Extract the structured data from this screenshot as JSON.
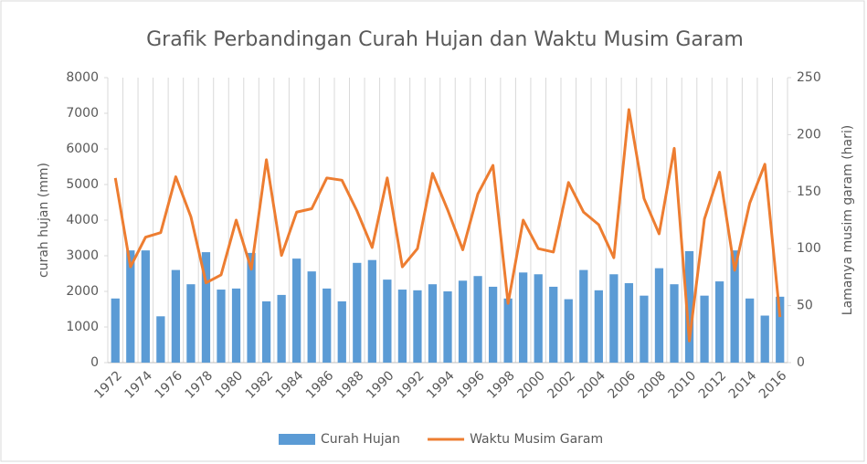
{
  "chart_data": {
    "type": "bar-line",
    "title": "Grafik Perbandingan Curah Hujan dan Waktu Musim Garam",
    "y_label": "curah hujan (mm)",
    "y2_label": "Lamanya musim garam (hari)",
    "categories": [
      "1972",
      null,
      "1974",
      null,
      "1976",
      null,
      "1978",
      null,
      "1980",
      null,
      "1982",
      null,
      "1984",
      null,
      "1986",
      null,
      "1988",
      null,
      "1990",
      null,
      "1992",
      null,
      "1994",
      null,
      "1996",
      null,
      "1998",
      null,
      "2000",
      null,
      "2002",
      null,
      "2004",
      null,
      "2006",
      null,
      "2008",
      null,
      "2010",
      null,
      "2012",
      null,
      "2014",
      null,
      "2016"
    ],
    "series": [
      {
        "name": "Curah Hujan",
        "color": "#5b9bd5",
        "kind": "bar",
        "values": [
          1800,
          3150,
          3150,
          1300,
          2600,
          2200,
          3100,
          2050,
          2080,
          3080,
          1720,
          1900,
          2920,
          2560,
          2080,
          1720,
          2800,
          2880,
          2330,
          2050,
          2030,
          2200,
          2000,
          2300,
          2430,
          2130,
          1800,
          2530,
          2480,
          2130,
          1780,
          2600,
          2030,
          2480,
          2230,
          1880,
          2650,
          2200,
          3130,
          1880,
          2280,
          3150,
          1800,
          1320,
          1850
        ]
      },
      {
        "name": "Waktu Musim Garam",
        "color": "#ed7d31",
        "kind": "line",
        "axis": "y2",
        "values": [
          162,
          84,
          110,
          114,
          163,
          128,
          70,
          77,
          125,
          82,
          178,
          94,
          132,
          135,
          162,
          160,
          133,
          101,
          162,
          84,
          100,
          166,
          134,
          99,
          148,
          173,
          52,
          125,
          100,
          97,
          158,
          132,
          121,
          92,
          222,
          144,
          113,
          188,
          19,
          126,
          167,
          81,
          140,
          174,
          40
        ]
      }
    ],
    "ylim": [
      0,
      8000
    ],
    "yticks": [
      0,
      1000,
      2000,
      3000,
      4000,
      5000,
      6000,
      7000,
      8000
    ],
    "y2lim": [
      0,
      250
    ],
    "y2ticks": [
      0,
      50,
      100,
      150,
      200,
      250
    ],
    "grid": true,
    "legend": "bottom"
  }
}
